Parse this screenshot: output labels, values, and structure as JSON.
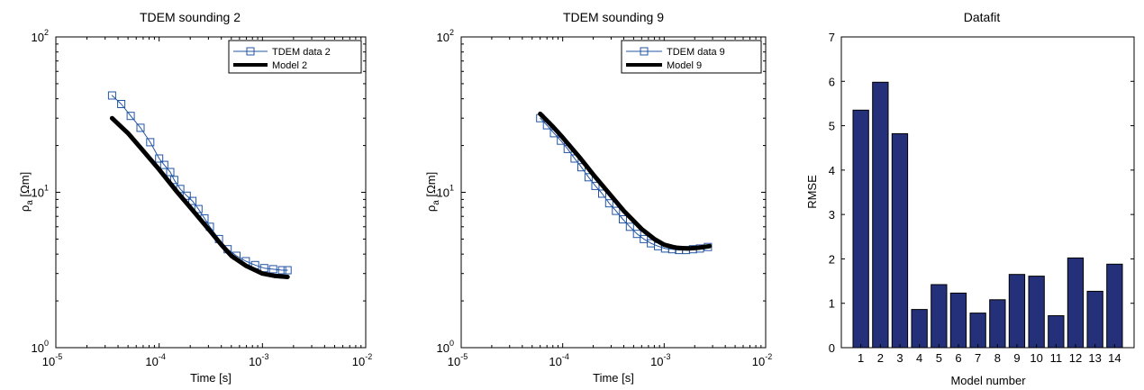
{
  "chart_data": [
    {
      "type": "line",
      "title": "TDEM sounding 2",
      "xlabel": "Time [s]",
      "ylabel": "ρa [Ωm]",
      "ylabel_base": "ρ",
      "ylabel_sub": "a",
      "ylabel_unit": " [Ωm]",
      "xscale": "log",
      "yscale": "log",
      "xlim": [
        1e-05,
        0.01
      ],
      "ylim": [
        1,
        100
      ],
      "x_ticks": [
        {
          "base": "10",
          "exp": "-5"
        },
        {
          "base": "10",
          "exp": "-4"
        },
        {
          "base": "10",
          "exp": "-3"
        },
        {
          "base": "10",
          "exp": "-2"
        }
      ],
      "y_ticks": [
        {
          "base": "10",
          "exp": "0"
        },
        {
          "base": "10",
          "exp": "1"
        },
        {
          "base": "10",
          "exp": "2"
        }
      ],
      "legend_position": "top-right",
      "series": [
        {
          "name": "TDEM data 2",
          "color": "#2255a4",
          "marker": "square",
          "x": [
            3.5e-05,
            4.3e-05,
            5.3e-05,
            6.6e-05,
            8.2e-05,
            0.0001,
            0.000112,
            0.000128,
            0.00014,
            0.00016,
            0.000185,
            0.00021,
            0.00024,
            0.000275,
            0.00031,
            0.00038,
            0.00046,
            0.00056,
            0.00069,
            0.00085,
            0.00104,
            0.00127,
            0.00155,
            0.00175
          ],
          "y": [
            42,
            37,
            31,
            26,
            21,
            16.5,
            15,
            13.5,
            12,
            10.5,
            9.5,
            8.8,
            7.8,
            6.8,
            6.0,
            5.0,
            4.3,
            3.9,
            3.6,
            3.4,
            3.25,
            3.2,
            3.15,
            3.15
          ]
        },
        {
          "name": "Model 2",
          "color": "#000000",
          "marker": "none",
          "x": [
            3.5e-05,
            5e-05,
            7e-05,
            0.0001,
            0.00015,
            0.0002,
            0.0003,
            0.0004,
            0.0005,
            0.0007,
            0.001,
            0.0013,
            0.00175
          ],
          "y": [
            30,
            24,
            18.5,
            14,
            10,
            8,
            5.8,
            4.6,
            3.9,
            3.35,
            3.0,
            2.9,
            2.85
          ]
        }
      ]
    },
    {
      "type": "line",
      "title": "TDEM sounding 9",
      "xlabel": "Time [s]",
      "ylabel": "ρa [Ωm]",
      "ylabel_base": "ρ",
      "ylabel_sub": "a",
      "ylabel_unit": " [Ωm]",
      "xscale": "log",
      "yscale": "log",
      "xlim": [
        1e-05,
        0.01
      ],
      "ylim": [
        1,
        100
      ],
      "x_ticks": [
        {
          "base": "10",
          "exp": "-5"
        },
        {
          "base": "10",
          "exp": "-4"
        },
        {
          "base": "10",
          "exp": "-3"
        },
        {
          "base": "10",
          "exp": "-2"
        }
      ],
      "y_ticks": [
        {
          "base": "10",
          "exp": "0"
        },
        {
          "base": "10",
          "exp": "1"
        },
        {
          "base": "10",
          "exp": "2"
        }
      ],
      "legend_position": "top-right",
      "series": [
        {
          "name": "TDEM data 9",
          "color": "#2255a4",
          "marker": "square",
          "x": [
            6e-05,
            7e-05,
            8.2e-05,
            9.6e-05,
            0.000112,
            0.000131,
            0.000153,
            0.00018,
            0.00021,
            0.000245,
            0.000287,
            0.000335,
            0.000392,
            0.00046,
            0.00054,
            0.00063,
            0.00074,
            0.00087,
            0.00102,
            0.0012,
            0.0014,
            0.00164,
            0.00192,
            0.00225,
            0.0027
          ],
          "y": [
            30,
            27,
            24,
            21.5,
            19,
            16.5,
            14.5,
            12.5,
            11,
            9.8,
            8.5,
            7.6,
            6.7,
            6.0,
            5.4,
            5.0,
            4.7,
            4.5,
            4.35,
            4.3,
            4.25,
            4.25,
            4.3,
            4.35,
            4.45
          ]
        },
        {
          "name": "Model 9",
          "color": "#000000",
          "marker": "none",
          "x": [
            6e-05,
            8e-05,
            0.0001,
            0.00015,
            0.0002,
            0.0003,
            0.0004,
            0.0006,
            0.0008,
            0.001,
            0.0013,
            0.0017,
            0.0022,
            0.0028
          ],
          "y": [
            32,
            26.5,
            22.5,
            16.5,
            13,
            9.5,
            7.6,
            5.8,
            5.0,
            4.6,
            4.4,
            4.35,
            4.4,
            4.5
          ]
        }
      ]
    },
    {
      "type": "bar",
      "title": "Datafit",
      "xlabel": "Model number",
      "ylabel": "RMSE",
      "ylim": [
        0,
        7
      ],
      "y_ticks": [
        "0",
        "1",
        "2",
        "3",
        "4",
        "5",
        "6",
        "7"
      ],
      "categories": [
        "1",
        "2",
        "3",
        "4",
        "5",
        "6",
        "7",
        "8",
        "9",
        "10",
        "11",
        "12",
        "13",
        "14"
      ],
      "values": [
        5.35,
        5.98,
        4.82,
        0.86,
        1.42,
        1.23,
        0.78,
        1.08,
        1.65,
        1.61,
        0.72,
        2.02,
        1.27,
        1.88
      ],
      "color": "#25307a"
    }
  ]
}
